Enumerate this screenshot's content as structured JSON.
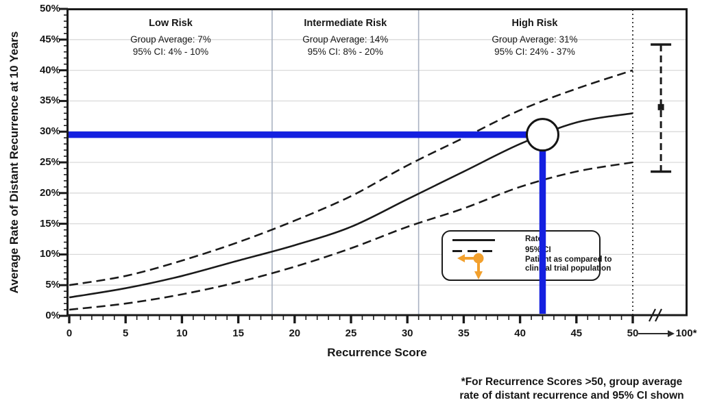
{
  "chart_data": {
    "type": "line",
    "title": "",
    "xlabel": "Recurrence Score",
    "ylabel": "Average Rate of Distant Recurrence at 10 Years",
    "xlim": [
      0,
      50
    ],
    "ylim_pct": [
      0,
      50
    ],
    "grid": "horizontal gridlines every 5%; vertical risk-zone dividers at scores 18 and 31; dotted vertical line at 50",
    "x_ticks": [
      0,
      5,
      10,
      15,
      20,
      25,
      30,
      35,
      40,
      45,
      50
    ],
    "x_axis_overflow_label": "100*",
    "y_tick_labels_top_to_bottom": [
      "50%",
      "45%",
      "40%",
      "35%",
      "30%",
      "25%",
      "20%",
      "15%",
      "10%",
      "5%",
      "0%"
    ],
    "x": [
      0,
      5,
      10,
      15,
      20,
      25,
      30,
      35,
      40,
      45,
      50
    ],
    "series": [
      {
        "name": "Rate",
        "line": "solid",
        "values": [
          3,
          4.5,
          6.5,
          9,
          11.5,
          14.5,
          19,
          23.5,
          28,
          31.5,
          33
        ]
      },
      {
        "name": "95% CI upper",
        "line": "dashed",
        "values": [
          5,
          6.5,
          9,
          12,
          15.5,
          19.5,
          24.5,
          29,
          33.5,
          37,
          40
        ]
      },
      {
        "name": "95% CI lower",
        "line": "dashed",
        "values": [
          1,
          2,
          3.5,
          5.5,
          8,
          11,
          14.5,
          17.5,
          21,
          23.5,
          25
        ]
      }
    ],
    "risk_zones": [
      {
        "label": "Low Risk",
        "x_range": [
          0,
          18
        ],
        "group_average_pct": 7,
        "ci_pct": [
          4,
          10
        ]
      },
      {
        "label": "Intermediate Risk",
        "x_range": [
          18,
          31
        ],
        "group_average_pct": 14,
        "ci_pct": [
          8,
          20
        ]
      },
      {
        "label": "High Risk",
        "x_range": [
          31,
          50
        ],
        "group_average_pct": 31,
        "ci_pct": [
          24,
          37
        ]
      }
    ],
    "patient_marker": {
      "score": 42,
      "rate_pct": 29.5
    },
    "over_50_summary": {
      "x_score": 52.5,
      "average_pct": 34,
      "ci_pct": [
        23.5,
        44.2
      ]
    },
    "legend_position": "inside lower right"
  },
  "axes": {
    "y_title": "Average Rate of Distant Recurrence at 10 Years",
    "x_title": "Recurrence Score",
    "x_overflow_label": "100*"
  },
  "zones": [
    {
      "title": "Low Risk",
      "avg": "Group Average: 7%",
      "ci": "95% CI: 4% - 10%",
      "center_score": 9
    },
    {
      "title": "Intermediate Risk",
      "avg": "Group Average: 14%",
      "ci": "95% CI: 8% - 20%",
      "center_score": 24.5
    },
    {
      "title": "High Risk",
      "avg": "Group Average: 31%",
      "ci": "95% CI: 24% - 37%",
      "center_score": 41.3
    }
  ],
  "legend": {
    "rate_label": "Rate",
    "ci_label": "95% CI",
    "patient_label_line1": "Patient as compared to",
    "patient_label_line2": "clinical trial population"
  },
  "footnote": {
    "line1": "*For Recurrence Scores >50, group average",
    "line2": "rate of distant recurrence and 95% CI shown"
  },
  "colors": {
    "curve_black": "#1a1a1a",
    "gridline_gray": "#d9d9d9",
    "zone_divider_gray": "#a9b2c2",
    "dotted_line_gray": "#404040",
    "accent_blue": "#1420e0",
    "legend_orange": "#f2a02d"
  }
}
